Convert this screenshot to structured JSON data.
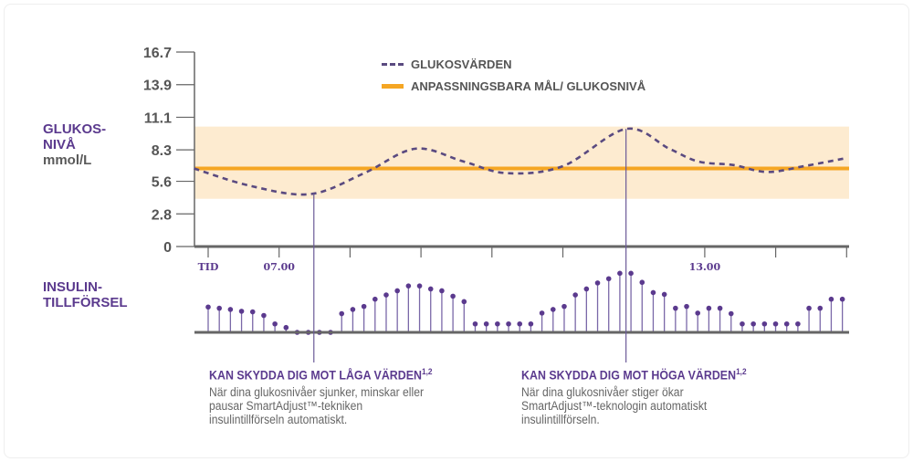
{
  "labels": {
    "glucose_axis_line1": "GLUKOS-",
    "glucose_axis_line2": "NIVÅ",
    "glucose_unit": "mmol/L",
    "insulin_line1": "INSULIN-",
    "insulin_line2": "TILLFÖRSEL"
  },
  "legend": {
    "glucose": "GLUKOSVÄRDEN",
    "target": "ANPASSNINGSBARA MÅL/ GLUKOSNIVÅ"
  },
  "annotations": [
    {
      "title": "KAN SKYDDA DIG MOT LÅGA VÄRDEN",
      "sup": "1,2",
      "body": "När dina glukosnivåer sjunker, minskar eller pausar SmartAdjust™-tekniken insulintillförseln automatiskt."
    },
    {
      "title": "KAN SKYDDA DIG MOT HÖGA VÄRDEN",
      "sup": "1,2",
      "body": "När dina glukosnivåer stiger ökar SmartAdjust™-teknologin automatiskt insulintillförseln."
    }
  ],
  "colors": {
    "purple": "#5b3a8e",
    "curve": "#5a4a80",
    "target": "#f5a623",
    "band": "#fdebd0",
    "axis": "#666666"
  },
  "chart_data": {
    "type": "line",
    "ylabel": "GLUKOSNIVÅ mmol/L",
    "ylim": [
      0,
      16.7
    ],
    "yticks": [
      "0",
      "2.8",
      "5.6",
      "8.3",
      "11.1",
      "13.9",
      "16.7"
    ],
    "xlim_hours": [
      5.8,
      15.0
    ],
    "xticks": [
      {
        "hour": 6,
        "label": "TID"
      },
      {
        "hour": 7,
        "label": "07.00"
      },
      {
        "hour": 8,
        "label": ""
      },
      {
        "hour": 9,
        "label": ""
      },
      {
        "hour": 10,
        "label": ""
      },
      {
        "hour": 11,
        "label": ""
      },
      {
        "hour": 13,
        "label": "13.00"
      },
      {
        "hour": 14,
        "label": ""
      },
      {
        "hour": 15,
        "label": ""
      }
    ],
    "target_level": 6.7,
    "target_range": [
      4.1,
      10.3
    ],
    "glucose_series": {
      "name": "GLUKOSVÄRDEN",
      "style": "dashed",
      "x": [
        5.8,
        6.6,
        7.44,
        8.2,
        8.92,
        9.6,
        10.21,
        11.0,
        11.89,
        12.5,
        12.91,
        13.4,
        13.88,
        14.4,
        15.0
      ],
      "y": [
        6.7,
        5.2,
        4.5,
        6.3,
        8.4,
        7.3,
        6.3,
        6.9,
        10.1,
        8.4,
        7.3,
        7.0,
        6.4,
        6.9,
        7.6
      ]
    },
    "target_series": {
      "name": "ANPASSNINGSBARA MÅL/ GLUKOSNIVÅ",
      "style": "solid"
    },
    "insulin_delivery": {
      "type": "lollipop",
      "start_hour": 6.0,
      "end_hour": 14.94,
      "relative_values": [
        4.2,
        4.0,
        3.8,
        3.5,
        3.4,
        2.8,
        1.4,
        0.8,
        0,
        0,
        0,
        0,
        3.1,
        3.8,
        4.3,
        5.5,
        6.2,
        6.9,
        7.7,
        7.7,
        7.2,
        6.9,
        6.0,
        5.1,
        1.4,
        1.4,
        1.4,
        1.4,
        1.4,
        1.4,
        3.2,
        3.8,
        4.3,
        6.2,
        7.2,
        8.2,
        8.9,
        9.8,
        9.8,
        8.3,
        6.6,
        6.3,
        4.0,
        4.3,
        3.2,
        4.0,
        4.0,
        3.1,
        1.4,
        1.4,
        1.4,
        1.4,
        1.4,
        1.4,
        4.0,
        4.0,
        5.5,
        5.5
      ]
    },
    "markers_hours": [
      7.49,
      11.89
    ],
    "grid": false,
    "legend_position": "top-center"
  }
}
